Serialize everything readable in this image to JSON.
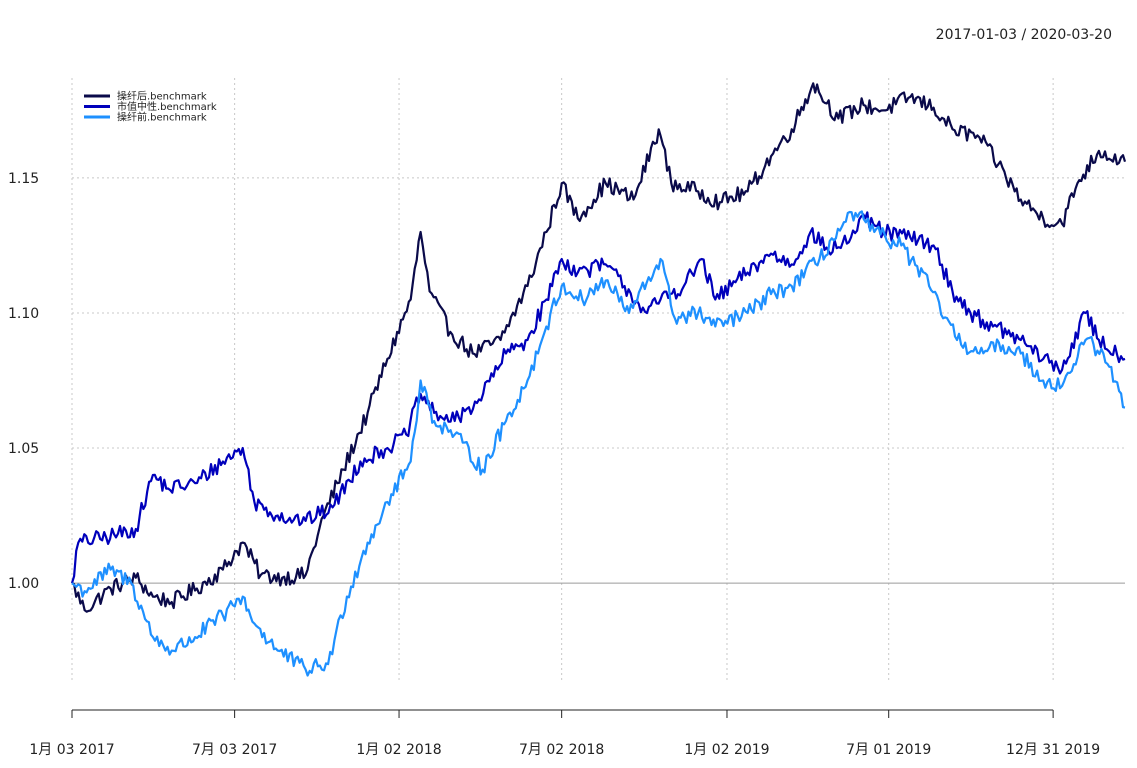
{
  "chart_data": {
    "type": "line",
    "title": "",
    "subtitle": "2017-01-03 / 2020-03-20",
    "xlabel": "",
    "ylabel": "",
    "xlim": [
      "2017-01-03",
      "2020-03-20"
    ],
    "ylim": [
      0.963,
      1.187
    ],
    "grid": true,
    "legend_position": "top-left",
    "reference_line": 1.0,
    "x_ticks": [
      {
        "date": "2017-01-03",
        "label": "1月 03 2017"
      },
      {
        "date": "2017-07-03",
        "label": "7月 03 2017"
      },
      {
        "date": "2018-01-02",
        "label": "1月 02 2018"
      },
      {
        "date": "2018-07-02",
        "label": "7月 02 2018"
      },
      {
        "date": "2019-01-02",
        "label": "1月 02 2019"
      },
      {
        "date": "2019-07-01",
        "label": "7月 01 2019"
      },
      {
        "date": "2019-12-31",
        "label": "12月 31 2019"
      }
    ],
    "y_ticks": [
      {
        "value": 1.0,
        "label": "1.00"
      },
      {
        "value": 1.05,
        "label": "1.05"
      },
      {
        "value": 1.1,
        "label": "1.10"
      },
      {
        "value": 1.15,
        "label": "1.15"
      }
    ],
    "series": [
      {
        "name": "操纤后.benchmark",
        "color": "#0a0a4a",
        "points": [
          [
            "2017-01-03",
            1.0
          ],
          [
            "2017-01-17",
            0.99
          ],
          [
            "2017-02-15",
            0.998
          ],
          [
            "2017-03-15",
            1.002
          ],
          [
            "2017-04-03",
            0.995
          ],
          [
            "2017-04-24",
            0.993
          ],
          [
            "2017-05-22",
            0.998
          ],
          [
            "2017-06-20",
            1.005
          ],
          [
            "2017-07-12",
            1.015
          ],
          [
            "2017-08-01",
            1.003
          ],
          [
            "2017-08-25",
            1.002
          ],
          [
            "2017-09-20",
            1.003
          ],
          [
            "2017-10-10",
            1.025
          ],
          [
            "2017-11-01",
            1.042
          ],
          [
            "2017-11-28",
            1.063
          ],
          [
            "2017-12-20",
            1.083
          ],
          [
            "2018-01-15",
            1.105
          ],
          [
            "2018-01-26",
            1.13
          ],
          [
            "2018-02-05",
            1.108
          ],
          [
            "2018-02-28",
            1.093
          ],
          [
            "2018-03-25",
            1.085
          ],
          [
            "2018-04-25",
            1.09
          ],
          [
            "2018-05-25",
            1.11
          ],
          [
            "2018-06-15",
            1.13
          ],
          [
            "2018-07-02",
            1.148
          ],
          [
            "2018-07-20",
            1.135
          ],
          [
            "2018-08-20",
            1.148
          ],
          [
            "2018-09-20",
            1.142
          ],
          [
            "2018-10-18",
            1.168
          ],
          [
            "2018-11-01",
            1.148
          ],
          [
            "2018-12-01",
            1.145
          ],
          [
            "2018-12-25",
            1.141
          ],
          [
            "2019-01-25",
            1.145
          ],
          [
            "2019-02-20",
            1.158
          ],
          [
            "2019-03-15",
            1.168
          ],
          [
            "2019-04-08",
            1.185
          ],
          [
            "2019-05-06",
            1.172
          ],
          [
            "2019-06-03",
            1.177
          ],
          [
            "2019-06-25",
            1.175
          ],
          [
            "2019-07-25",
            1.18
          ],
          [
            "2019-08-20",
            1.176
          ],
          [
            "2019-09-10",
            1.168
          ],
          [
            "2019-10-10",
            1.165
          ],
          [
            "2019-10-31",
            1.155
          ],
          [
            "2019-11-25",
            1.142
          ],
          [
            "2019-12-20",
            1.135
          ],
          [
            "2020-01-10",
            1.133
          ],
          [
            "2020-01-27",
            1.148
          ],
          [
            "2020-02-20",
            1.16
          ],
          [
            "2020-03-20",
            1.156
          ]
        ]
      },
      {
        "name": "市值中性.benchmark",
        "color": "#0000bb",
        "points": [
          [
            "2017-01-03",
            1.0
          ],
          [
            "2017-01-10",
            1.015
          ],
          [
            "2017-02-10",
            1.017
          ],
          [
            "2017-03-15",
            1.02
          ],
          [
            "2017-04-03",
            1.04
          ],
          [
            "2017-04-20",
            1.035
          ],
          [
            "2017-05-20",
            1.037
          ],
          [
            "2017-06-20",
            1.045
          ],
          [
            "2017-07-12",
            1.05
          ],
          [
            "2017-07-25",
            1.03
          ],
          [
            "2017-08-20",
            1.025
          ],
          [
            "2017-09-20",
            1.023
          ],
          [
            "2017-10-20",
            1.028
          ],
          [
            "2017-11-20",
            1.045
          ],
          [
            "2017-12-20",
            1.05
          ],
          [
            "2018-01-10",
            1.055
          ],
          [
            "2018-01-26",
            1.07
          ],
          [
            "2018-02-10",
            1.063
          ],
          [
            "2018-03-05",
            1.06
          ],
          [
            "2018-04-01",
            1.068
          ],
          [
            "2018-05-01",
            1.085
          ],
          [
            "2018-05-25",
            1.09
          ],
          [
            "2018-06-15",
            1.105
          ],
          [
            "2018-07-02",
            1.12
          ],
          [
            "2018-07-20",
            1.115
          ],
          [
            "2018-08-20",
            1.118
          ],
          [
            "2018-09-10",
            1.11
          ],
          [
            "2018-10-05",
            1.1
          ],
          [
            "2018-10-20",
            1.105
          ],
          [
            "2018-11-15",
            1.11
          ],
          [
            "2018-12-05",
            1.12
          ],
          [
            "2018-12-20",
            1.105
          ],
          [
            "2019-01-25",
            1.115
          ],
          [
            "2019-02-20",
            1.122
          ],
          [
            "2019-03-15",
            1.118
          ],
          [
            "2019-04-05",
            1.13
          ],
          [
            "2019-04-25",
            1.123
          ],
          [
            "2019-05-20",
            1.128
          ],
          [
            "2019-06-05",
            1.135
          ],
          [
            "2019-06-25",
            1.13
          ],
          [
            "2019-07-25",
            1.128
          ],
          [
            "2019-08-20",
            1.125
          ],
          [
            "2019-09-10",
            1.108
          ],
          [
            "2019-09-30",
            1.1
          ],
          [
            "2019-10-25",
            1.095
          ],
          [
            "2019-11-25",
            1.09
          ],
          [
            "2019-12-20",
            1.083
          ],
          [
            "2020-01-10",
            1.079
          ],
          [
            "2020-02-05",
            1.1
          ],
          [
            "2020-02-20",
            1.09
          ],
          [
            "2020-03-20",
            1.083
          ]
        ]
      },
      {
        "name": "操纤前.benchmark",
        "color": "#1e90ff",
        "points": [
          [
            "2017-01-03",
            1.0
          ],
          [
            "2017-01-17",
            0.997
          ],
          [
            "2017-02-15",
            1.005
          ],
          [
            "2017-03-10",
            1.0
          ],
          [
            "2017-04-03",
            0.98
          ],
          [
            "2017-04-24",
            0.975
          ],
          [
            "2017-05-20",
            0.98
          ],
          [
            "2017-06-20",
            0.988
          ],
          [
            "2017-07-12",
            0.995
          ],
          [
            "2017-07-25",
            0.985
          ],
          [
            "2017-08-20",
            0.975
          ],
          [
            "2017-09-20",
            0.968
          ],
          [
            "2017-10-15",
            0.97
          ],
          [
            "2017-11-05",
            0.995
          ],
          [
            "2017-11-28",
            1.015
          ],
          [
            "2017-12-20",
            1.03
          ],
          [
            "2018-01-15",
            1.045
          ],
          [
            "2018-01-26",
            1.075
          ],
          [
            "2018-02-10",
            1.06
          ],
          [
            "2018-03-05",
            1.055
          ],
          [
            "2018-04-05",
            1.042
          ],
          [
            "2018-05-01",
            1.06
          ],
          [
            "2018-05-25",
            1.075
          ],
          [
            "2018-06-15",
            1.095
          ],
          [
            "2018-07-02",
            1.11
          ],
          [
            "2018-07-25",
            1.105
          ],
          [
            "2018-08-20",
            1.112
          ],
          [
            "2018-09-15",
            1.1
          ],
          [
            "2018-10-20",
            1.12
          ],
          [
            "2018-11-05",
            1.098
          ],
          [
            "2018-12-01",
            1.1
          ],
          [
            "2018-12-20",
            1.095
          ],
          [
            "2019-01-25",
            1.1
          ],
          [
            "2019-02-20",
            1.107
          ],
          [
            "2019-03-15",
            1.11
          ],
          [
            "2019-04-15",
            1.12
          ],
          [
            "2019-05-10",
            1.132
          ],
          [
            "2019-05-25",
            1.137
          ],
          [
            "2019-06-15",
            1.13
          ],
          [
            "2019-07-15",
            1.125
          ],
          [
            "2019-08-15",
            1.11
          ],
          [
            "2019-09-15",
            1.09
          ],
          [
            "2019-10-10",
            1.085
          ],
          [
            "2019-11-05",
            1.088
          ],
          [
            "2019-11-25",
            1.085
          ],
          [
            "2019-12-20",
            1.075
          ],
          [
            "2020-01-10",
            1.073
          ],
          [
            "2020-02-05",
            1.09
          ],
          [
            "2020-02-25",
            1.085
          ],
          [
            "2020-03-20",
            1.065
          ]
        ]
      }
    ]
  }
}
